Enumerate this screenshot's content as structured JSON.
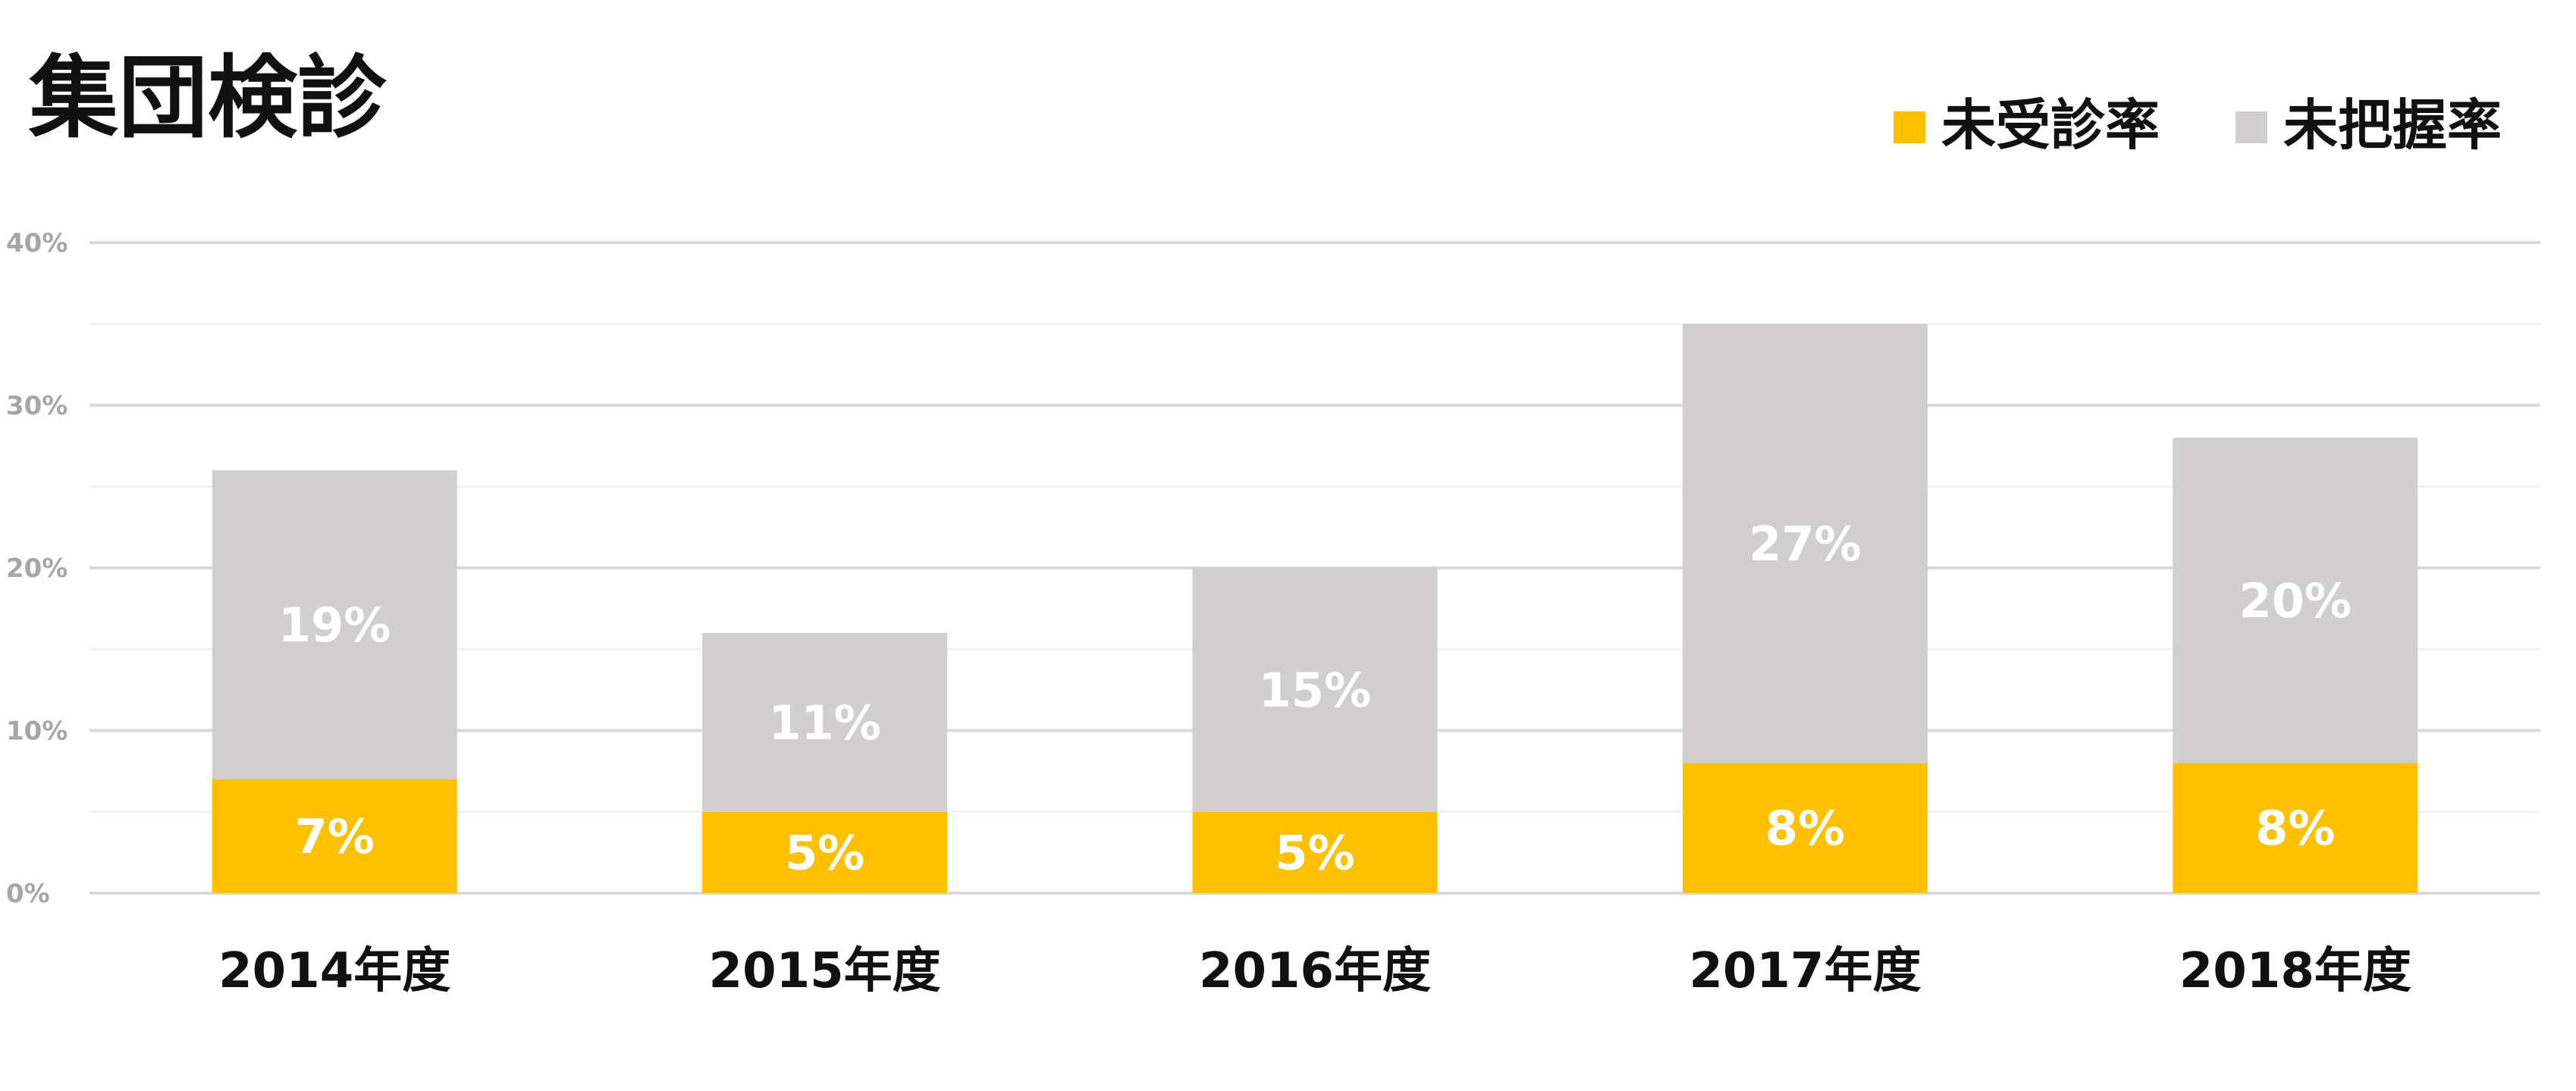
{
  "chart_data": {
    "type": "bar",
    "stacked": true,
    "title": "集団検診",
    "categories": [
      "2014年度",
      "2015年度",
      "2016年度",
      "2017年度",
      "2018年度"
    ],
    "series": [
      {
        "name": "未受診率",
        "values": [
          7,
          5,
          5,
          8,
          8
        ],
        "labels": [
          "7%",
          "5%",
          "5%",
          "8%",
          "8%"
        ],
        "color": "#ffc000"
      },
      {
        "name": "未把握率",
        "values": [
          19,
          11,
          15,
          27,
          20
        ],
        "labels": [
          "19%",
          "11%",
          "15%",
          "27%",
          "20%"
        ],
        "color": "#d0cece"
      }
    ],
    "ylim": [
      0,
      40
    ],
    "yticks": [
      "0%",
      "10%",
      "20%",
      "30%",
      "40%"
    ],
    "grid": true,
    "legend": "top-right",
    "colors": {
      "gridline": "#d9d9d9",
      "minor_gridline": "#f2f2f2",
      "ytick_text": "#a6a6a6"
    }
  }
}
